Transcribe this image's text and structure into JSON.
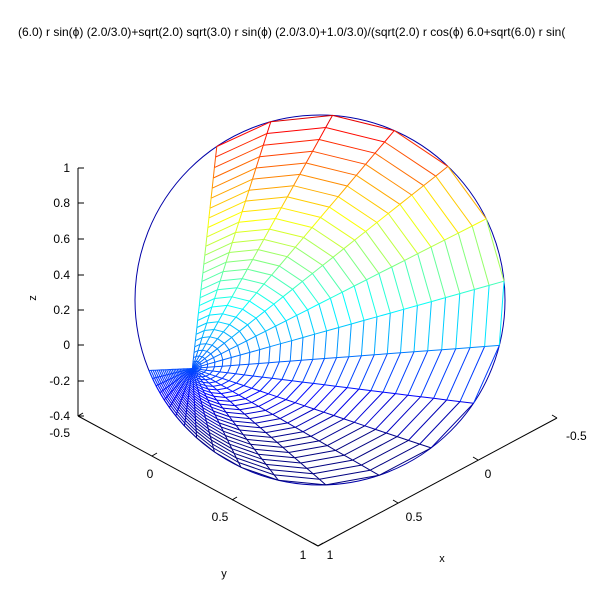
{
  "chart_data": {
    "type": "surface-mesh",
    "title": "(6.0) r sin(ϕ) (2.0/3.0)+sqrt(2.0) sqrt(3.0) r sin(ϕ) (2.0/3.0)+1.0/3.0)/(sqrt(2.0) r cos(ϕ) 6.0+sqrt(6.0) r sin(",
    "xlabel": "x",
    "ylabel": "y",
    "zlabel": "z",
    "xlim": [
      -0.5,
      1
    ],
    "ylim": [
      -0.5,
      1
    ],
    "zlim": [
      -0.4,
      1
    ],
    "xticks": [
      "-0.5",
      "0",
      "0.5",
      "1"
    ],
    "yticks": [
      "-0.5",
      "0",
      "0.5",
      "1"
    ],
    "zticks": [
      "-0.4",
      "-0.2",
      "0",
      "0.2",
      "0.4",
      "0.6",
      "0.8",
      "1"
    ],
    "colormap": "jet",
    "grid": false,
    "mesh": {
      "radial_lines": 24,
      "rings": 28
    }
  }
}
